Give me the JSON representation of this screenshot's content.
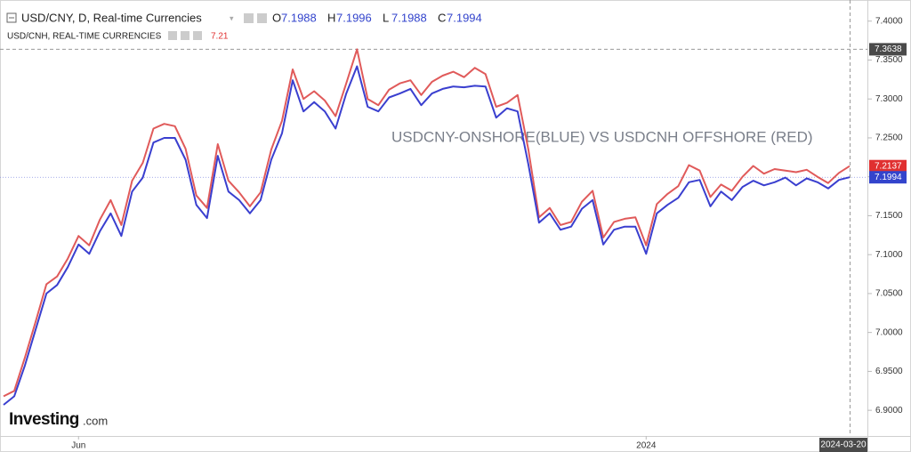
{
  "chart_data": {
    "type": "line",
    "annotation": "USDCNY-ONSHORE(BLUE) VS USDCNH OFFSHORE (RED)",
    "logo": [
      "Investing",
      ".com"
    ],
    "ohlc": [
      {
        "label": "O",
        "value": 7.1988
      },
      {
        "label": "H",
        "value": 7.1996
      },
      {
        "label": "L",
        "value": 7.1988
      },
      {
        "label": "C",
        "value": 7.1994
      }
    ],
    "categories": [
      null,
      null,
      null,
      null,
      null,
      null,
      null,
      "Jun",
      null,
      null,
      null,
      null,
      null,
      null,
      null,
      null,
      null,
      null,
      null,
      null,
      null,
      null,
      null,
      null,
      null,
      null,
      null,
      null,
      null,
      null,
      null,
      null,
      null,
      null,
      null,
      null,
      null,
      null,
      null,
      null,
      null,
      null,
      null,
      null,
      null,
      null,
      null,
      null,
      null,
      null,
      null,
      null,
      null,
      null,
      null,
      null,
      null,
      null,
      null,
      null,
      "2024",
      null,
      null,
      null,
      null,
      null,
      null,
      null,
      null,
      null,
      null,
      null,
      null,
      null,
      null,
      null,
      null,
      null,
      null,
      "2024-03-20"
    ],
    "series": [
      {
        "name": "USD/CNY, D, Real-time Currencies",
        "color": "#3a3fcf",
        "values": [
          6.907,
          6.918,
          6.958,
          7.004,
          7.05,
          7.061,
          7.084,
          7.113,
          7.101,
          7.13,
          7.153,
          7.124,
          7.181,
          7.199,
          7.244,
          7.25,
          7.25,
          7.222,
          7.164,
          7.147,
          7.227,
          7.181,
          7.17,
          7.153,
          7.17,
          7.222,
          7.256,
          7.324,
          7.284,
          7.296,
          7.284,
          7.262,
          7.307,
          7.342,
          7.29,
          7.284,
          7.302,
          7.307,
          7.313,
          7.292,
          7.307,
          7.313,
          7.316,
          7.315,
          7.317,
          7.316,
          7.276,
          7.288,
          7.284,
          7.216,
          7.141,
          7.153,
          7.132,
          7.136,
          7.159,
          7.17,
          7.113,
          7.132,
          7.136,
          7.136,
          7.101,
          7.153,
          7.164,
          7.173,
          7.193,
          7.196,
          7.162,
          7.181,
          7.17,
          7.187,
          7.195,
          7.189,
          7.193,
          7.199,
          7.189,
          7.198,
          7.193,
          7.185,
          7.196,
          7.1994
        ]
      },
      {
        "name": "USD/CNH, REAL-TIME CURRENCIES",
        "color": "#e05a5a",
        "last": 7.21,
        "values": [
          6.918,
          6.925,
          6.968,
          7.014,
          7.062,
          7.072,
          7.095,
          7.124,
          7.112,
          7.145,
          7.17,
          7.138,
          7.195,
          7.218,
          7.262,
          7.268,
          7.265,
          7.236,
          7.176,
          7.16,
          7.242,
          7.195,
          7.18,
          7.162,
          7.18,
          7.235,
          7.272,
          7.338,
          7.3,
          7.31,
          7.298,
          7.278,
          7.32,
          7.3638,
          7.3,
          7.292,
          7.312,
          7.32,
          7.324,
          7.305,
          7.322,
          7.33,
          7.335,
          7.328,
          7.34,
          7.332,
          7.29,
          7.295,
          7.305,
          7.235,
          7.148,
          7.16,
          7.138,
          7.142,
          7.168,
          7.182,
          7.122,
          7.142,
          7.146,
          7.148,
          7.112,
          7.165,
          7.178,
          7.188,
          7.215,
          7.208,
          7.174,
          7.19,
          7.182,
          7.2,
          7.214,
          7.204,
          7.21,
          7.208,
          7.206,
          7.209,
          7.2,
          7.192,
          7.205,
          7.2137
        ]
      }
    ],
    "ylim": [
      6.867,
      7.418
    ],
    "yticks": [
      {
        "value": 6.9,
        "label": "6.9000"
      },
      {
        "value": 6.95,
        "label": "6.9500"
      },
      {
        "value": 7.0,
        "label": "7.0000"
      },
      {
        "value": 7.05,
        "label": "7.0500"
      },
      {
        "value": 7.1,
        "label": "7.1000"
      },
      {
        "value": 7.15,
        "label": "7.1500"
      },
      {
        "value": 7.2,
        "label": "7.2000"
      },
      {
        "value": 7.25,
        "label": "7.2500"
      },
      {
        "value": 7.3,
        "label": "7.3000"
      },
      {
        "value": 7.35,
        "label": "7.3500"
      },
      {
        "value": 7.4,
        "label": "7.4000"
      }
    ],
    "grid": false
  }
}
